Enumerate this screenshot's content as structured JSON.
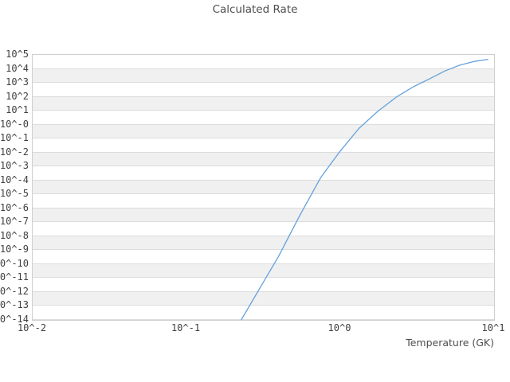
{
  "chart_data": {
    "type": "line",
    "title": "Calculated Rate",
    "xlabel": "Temperature (GK)",
    "ylabel": "",
    "x_scale": "log",
    "y_scale": "log",
    "xlim_log10": [
      -2,
      1
    ],
    "ylim_log10": [
      -14,
      5
    ],
    "grid": "horizontal-decade-bands",
    "legend": "none",
    "x_tick_labels": [
      "10^-2",
      "10^-1",
      "10^0",
      "10^1"
    ],
    "x_ticks_log10": [
      -2,
      -1,
      0,
      1
    ],
    "y_tick_labels": [
      "10^5",
      "10^4",
      "10^3",
      "10^2",
      "10^1",
      "10^-0",
      "10^-1",
      "10^-2",
      "10^-3",
      "10^-4",
      "10^-5",
      "10^-6",
      "10^-7",
      "10^-8",
      "10^-9",
      "10^-10",
      "10^-11",
      "10^-12",
      "10^-13",
      "10^-14"
    ],
    "y_ticks_log10": [
      5,
      4,
      3,
      2,
      1,
      0,
      -1,
      -2,
      -3,
      -4,
      -5,
      -6,
      -7,
      -8,
      -9,
      -10,
      -11,
      -12,
      -13,
      -14
    ],
    "series": [
      {
        "name": "calculated rate",
        "color": "#64a1dc",
        "x_temperature_GK": [
          0.227,
          0.299,
          0.396,
          0.543,
          0.745,
          0.991,
          1.32,
          1.75,
          2.33,
          2.99,
          3.85,
          4.79,
          5.92,
          7.41,
          9.1
        ],
        "y_log10_rate": [
          -14.0,
          -11.75,
          -9.46,
          -6.55,
          -3.81,
          -1.95,
          -0.28,
          0.95,
          2.0,
          2.72,
          3.31,
          3.85,
          4.25,
          4.53,
          4.68
        ]
      }
    ]
  },
  "style": {
    "band_gray": "#f0f0f0",
    "band_white": "#ffffff",
    "gridline": "#dcdcdc",
    "plot_border": "#cfcfcf",
    "title_color": "#4d4d4d",
    "tick_color": "#404040"
  }
}
